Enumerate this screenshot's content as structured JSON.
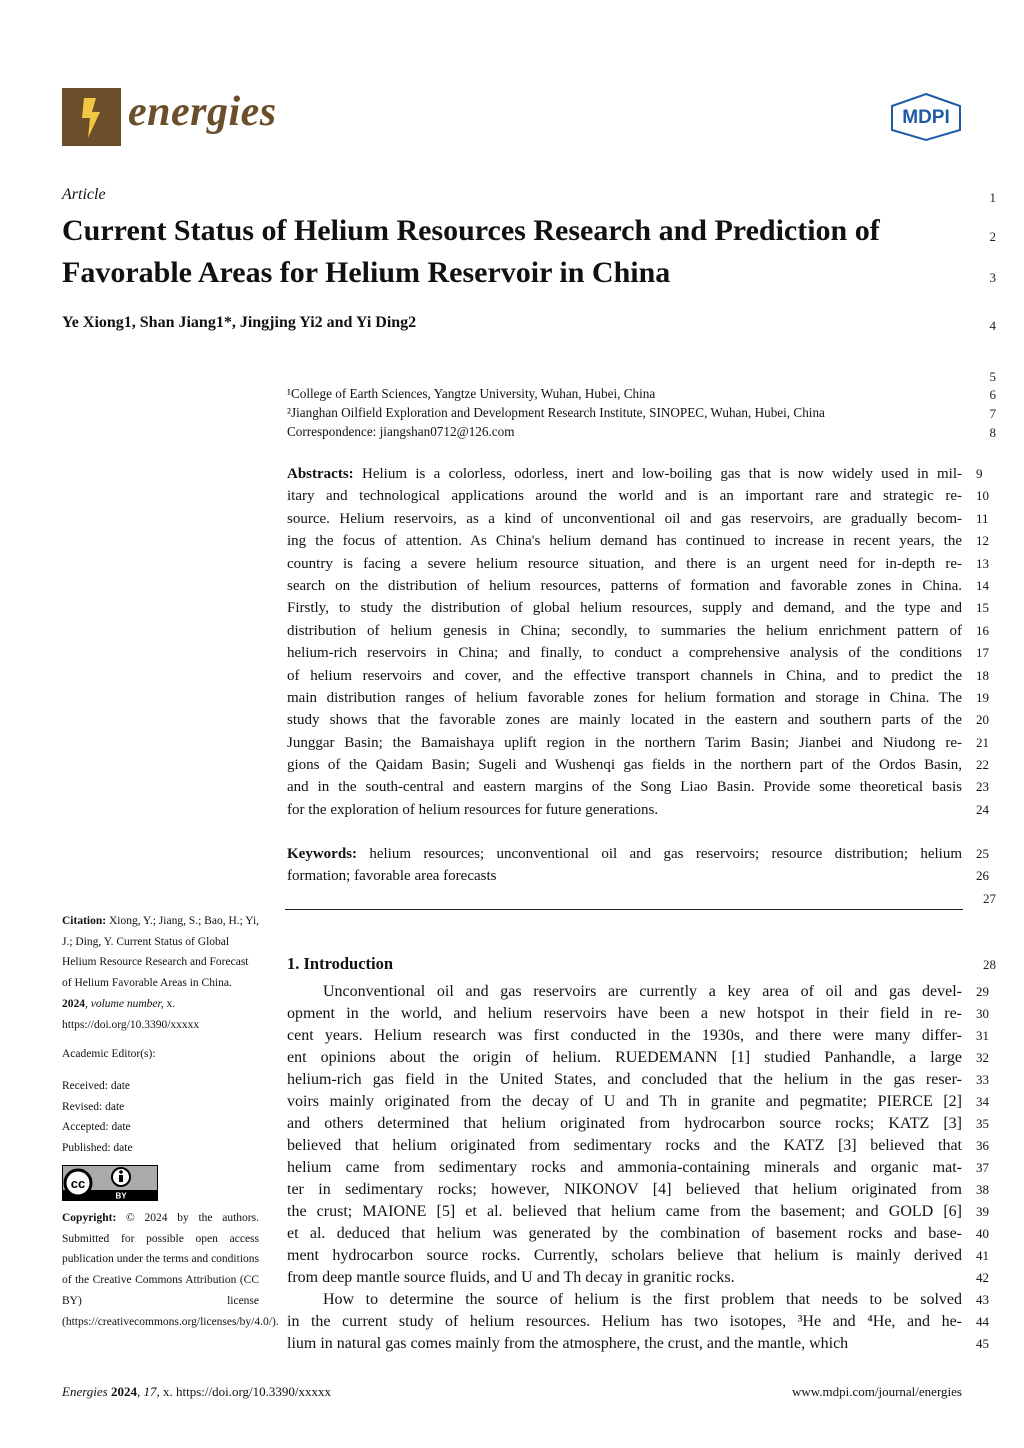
{
  "journal": {
    "name": "energies",
    "publisher": "MDPI",
    "brand_color": "#6b4e2a",
    "publisher_color": "#1f5ca8"
  },
  "header": {
    "article_type": "Article",
    "title_lines": [
      "Current Status of Helium Resources Research and Prediction of",
      "Favorable Areas for Helium Reservoir in China"
    ],
    "authors": "Ye Xiong1, Shan Jiang1*, Jingjing Yi2 and Yi Ding2",
    "affiliations": [
      "¹College of Earth Sciences, Yangtze University, Wuhan, Hubei, China",
      "²Jianghan Oilfield Exploration and Development Research Institute, SINOPEC, Wuhan, Hubei, China",
      "Correspondence: jiangshan0712@126.com"
    ]
  },
  "line_numbers": {
    "l1": "1",
    "l2": "2",
    "l3": "3",
    "l4": "4",
    "l5": "5",
    "l6": "6",
    "l7": "7",
    "l8": "8",
    "l27": "27",
    "l28": "28"
  },
  "abstract": {
    "label": "Abstracts:",
    "lines": [
      {
        "n": "9",
        "t": "Helium is a colorless, odorless, inert and low-boiling gas that is now widely used in mil-"
      },
      {
        "n": "10",
        "t": "itary and technological applications around the world and is an important rare and strategic re-"
      },
      {
        "n": "11",
        "t": "source. Helium reservoirs, as a kind of unconventional oil and gas reservoirs, are gradually becom-"
      },
      {
        "n": "12",
        "t": "ing the focus of attention. As China's helium demand has continued to increase in recent years, the"
      },
      {
        "n": "13",
        "t": "country is facing a severe helium resource situation, and there is an urgent need for in-depth re-"
      },
      {
        "n": "14",
        "t": "search on the distribution of helium resources, patterns of formation and favorable zones in China."
      },
      {
        "n": "15",
        "t": "Firstly, to study the distribution of global helium resources, supply and demand, and the type and"
      },
      {
        "n": "16",
        "t": "distribution of helium genesis in China; secondly, to summaries the helium enrichment pattern of"
      },
      {
        "n": "17",
        "t": "helium-rich reservoirs in China; and finally, to conduct a comprehensive analysis of the conditions"
      },
      {
        "n": "18",
        "t": "of helium reservoirs and cover, and the effective transport channels in China, and to predict the"
      },
      {
        "n": "19",
        "t": "main distribution ranges of helium favorable zones for helium formation and storage in China. The"
      },
      {
        "n": "20",
        "t": "study shows that the favorable zones are mainly located in the eastern and southern parts of the"
      },
      {
        "n": "21",
        "t": "Junggar Basin; the Bamaishaya uplift region in the northern Tarim Basin; Jianbei and Niudong re-"
      },
      {
        "n": "22",
        "t": "gions of the Qaidam Basin; Sugeli and Wushenqi gas fields in the northern part of the Ordos Basin,"
      },
      {
        "n": "23",
        "t": "and in the south-central and eastern margins of the Song Liao Basin. Provide some theoretical basis"
      },
      {
        "n": "24",
        "t": "for the exploration of helium resources for future generations."
      }
    ]
  },
  "keywords": {
    "label": "Keywords:",
    "lines": [
      {
        "n": "25",
        "t": "helium resources; unconventional oil and gas reservoirs; resource distribution; helium"
      },
      {
        "n": "26",
        "t": "formation; favorable area forecasts"
      }
    ]
  },
  "introduction": {
    "heading": "1. Introduction",
    "lines": [
      {
        "n": "29",
        "t": "Unconventional oil and gas reservoirs are currently a key area of oil and gas devel-"
      },
      {
        "n": "30",
        "t": "opment in the world, and helium reservoirs have been a new hotspot in their field in re-"
      },
      {
        "n": "31",
        "t": "cent years. Helium research was first conducted in the 1930s, and there were many differ-"
      },
      {
        "n": "32",
        "t": "ent opinions about the origin of helium. RUEDEMANN [1] studied Panhandle, a large"
      },
      {
        "n": "33",
        "t": "helium-rich gas field in the United States, and concluded that the helium in the gas reser-"
      },
      {
        "n": "34",
        "t": "voirs mainly originated from the decay of U and Th in granite and pegmatite; PIERCE [2]"
      },
      {
        "n": "35",
        "t": "and others determined that helium originated from hydrocarbon source rocks; KATZ [3]"
      },
      {
        "n": "36",
        "t": "believed that helium originated from sedimentary rocks and the KATZ [3] believed that"
      },
      {
        "n": "37",
        "t": "helium came from sedimentary rocks and ammonia-containing minerals and organic mat-"
      },
      {
        "n": "38",
        "t": "ter in sedimentary rocks; however, NIKONOV [4] believed that helium originated from"
      },
      {
        "n": "39",
        "t": "the crust; MAIONE [5] et al. believed that helium came from the basement; and GOLD [6]"
      },
      {
        "n": "40",
        "t": "et al. deduced that helium was generated by the combination of basement rocks and base-"
      },
      {
        "n": "41",
        "t": "ment hydrocarbon source rocks. Currently, scholars believe that helium is mainly derived"
      },
      {
        "n": "42",
        "t": "from deep mantle source fluids, and U and Th decay in granitic rocks."
      },
      {
        "n": "43",
        "t": "How to determine the source of helium is the first problem that needs to be solved"
      },
      {
        "n": "44",
        "t": "in the current study of helium resources. Helium has two isotopes, ³He and ⁴He, and he-"
      },
      {
        "n": "45",
        "t": "lium in natural gas comes mainly from the atmosphere, the crust, and the mantle, which"
      }
    ]
  },
  "sidebar": {
    "citation_label": "Citation:",
    "citation_text": "Xiong, Y.; Jiang, S.; Bao, H.; Yi, J.; Ding, Y. Current Status of Global Helium Resource Research and Forecast of Helium Favorable Areas in China.",
    "citation_year": "2024",
    "citation_volume": ", volume number,",
    "citation_doi": "x. https://doi.org/10.3390/xxxxx",
    "academic_editor": "Academic Editor(s):",
    "dates": [
      "Received: date",
      "Revised: date",
      "Accepted: date",
      "Published: date"
    ],
    "license_badge": "BY",
    "copyright_label": "Copyright:",
    "copyright_text": "© 2024 by the authors. Submitted for possible open access publication under the terms and conditions of the Creative Commons Attribution (CC BY) license (https://creativecommons.org/licenses/by/4.0/)."
  },
  "footer": {
    "journal": "Energies",
    "year": "2024",
    "volume": ", 17,",
    "rest": " x. https://doi.org/10.3390/xxxxx",
    "url": "www.mdpi.com/journal/energies"
  }
}
